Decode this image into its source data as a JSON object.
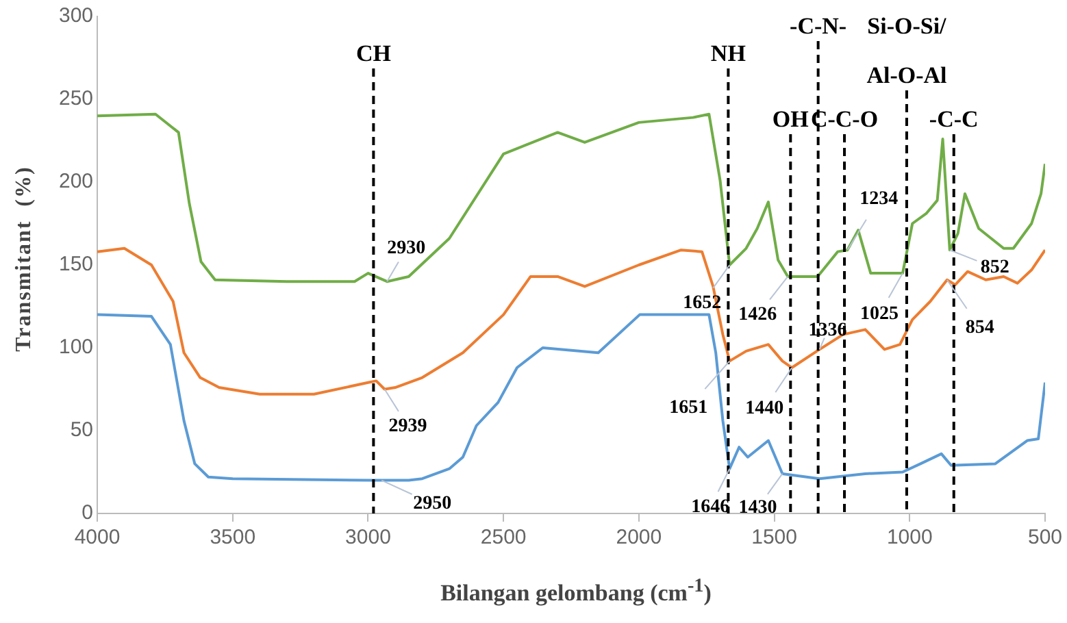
{
  "chart_data": {
    "type": "line",
    "xlabel": "Bilangan gelombang (cm$^{-1}$)",
    "ylabel": "Transmitant  (%)",
    "xlim": [
      4000,
      500
    ],
    "xticks": [
      4000,
      3500,
      3000,
      2500,
      2000,
      1500,
      1000,
      500
    ],
    "ylim": [
      0,
      300
    ],
    "yticks": [
      0,
      50,
      100,
      150,
      200,
      250,
      300
    ],
    "grid": false,
    "legend": false,
    "marker": "none",
    "series": [
      {
        "color": "#70ad47",
        "x": [
          4000,
          3785,
          3700,
          3660,
          3617,
          3565,
          3300,
          3050,
          3000,
          2930,
          2850,
          2700,
          2500,
          2300,
          2200,
          2000,
          1800,
          1741,
          1700,
          1665,
          1604,
          1563,
          1522,
          1486,
          1450,
          1340,
          1266,
          1230,
          1190,
          1144,
          1026,
          990,
          939,
          898,
          878,
          852,
          822,
          796,
          745,
          653,
          617,
          550,
          515,
          500
        ],
        "values": [
          240,
          241,
          230,
          187,
          152,
          141,
          140,
          140,
          145,
          140,
          143,
          166,
          217,
          230,
          224,
          236,
          239,
          241,
          201,
          150,
          160,
          172,
          188,
          153,
          143,
          143,
          158,
          159,
          171,
          145,
          145,
          175,
          181,
          189,
          226,
          159,
          169,
          193,
          172,
          160,
          160,
          175,
          193,
          211
        ]
      },
      {
        "color": "#ed7d31",
        "x": [
          4000,
          3900,
          3800,
          3720,
          3680,
          3620,
          3550,
          3400,
          3200,
          3000,
          2970,
          2939,
          2900,
          2800,
          2650,
          2500,
          2400,
          2300,
          2200,
          2000,
          1844,
          1767,
          1726,
          1690,
          1665,
          1604,
          1522,
          1470,
          1435,
          1333,
          1246,
          1164,
          1093,
          1036,
          990,
          924,
          862,
          832,
          786,
          719,
          653,
          602,
          550,
          500
        ],
        "values": [
          158,
          160,
          150,
          128,
          97,
          82,
          76,
          72,
          72,
          79,
          80,
          75,
          76,
          82,
          97,
          120,
          143,
          143,
          137,
          150,
          159,
          158,
          137,
          108,
          92,
          98,
          102,
          92,
          88,
          99,
          108,
          111,
          99,
          102,
          117,
          128,
          141,
          138,
          146,
          141,
          143,
          139,
          147,
          159
        ]
      },
      {
        "color": "#5b9bd5",
        "x": [
          4000,
          3800,
          3730,
          3680,
          3640,
          3590,
          3500,
          3000,
          2850,
          2800,
          2700,
          2650,
          2600,
          2520,
          2450,
          2355,
          2150,
          1997,
          1741,
          1716,
          1690,
          1665,
          1630,
          1598,
          1522,
          1470,
          1333,
          1164,
          1026,
          960,
          883,
          847,
          684,
          566,
          525,
          500
        ],
        "values": [
          120,
          119,
          102,
          56,
          30,
          22,
          21,
          20,
          20,
          21,
          27,
          34,
          53,
          67,
          88,
          100,
          97,
          120,
          120,
          97,
          56,
          27,
          40,
          34,
          44,
          24,
          21,
          24,
          25,
          30,
          36,
          29,
          30,
          44,
          45,
          79
        ]
      }
    ],
    "ref_lines": [
      {
        "axis": "x",
        "value": 2980,
        "label": "CH",
        "line_style": "dashed",
        "color": "#000000"
      },
      {
        "axis": "x",
        "value": 1670,
        "label": "NH",
        "line_style": "dashed",
        "color": "#000000"
      },
      {
        "axis": "x",
        "value": 1440,
        "label": "OH",
        "line_style": "dashed",
        "color": "#000000"
      },
      {
        "axis": "x",
        "value": 1338,
        "label": "-C-N-",
        "line_style": "dashed",
        "color": "#000000"
      },
      {
        "axis": "x",
        "value": 1241,
        "label": "C-C-O",
        "line_style": "dashed",
        "color": "#000000"
      },
      {
        "axis": "x",
        "value": 1011,
        "label": "Si-O-Si/\nAl-O-Al",
        "line_style": "dashed",
        "color": "#000000"
      },
      {
        "axis": "x",
        "value": 837,
        "label": "-C-C",
        "line_style": "dashed",
        "color": "#000000"
      }
    ],
    "annotations": [
      {
        "text": "2930",
        "x": 2930,
        "y": 140
      },
      {
        "text": "2939",
        "x": 2939,
        "y": 75
      },
      {
        "text": "2950",
        "x": 2950,
        "y": 20
      },
      {
        "text": "1652",
        "x": 1665,
        "y": 150
      },
      {
        "text": "1651",
        "x": 1665,
        "y": 92
      },
      {
        "text": "1646",
        "x": 1665,
        "y": 27
      },
      {
        "text": "1426",
        "x": 1450,
        "y": 143
      },
      {
        "text": "1440",
        "x": 1435,
        "y": 88
      },
      {
        "text": "1430",
        "x": 1470,
        "y": 24
      },
      {
        "text": "1336",
        "x": 1333,
        "y": 99
      },
      {
        "text": "1234",
        "x": 1230,
        "y": 159
      },
      {
        "text": "1025",
        "x": 1026,
        "y": 145
      },
      {
        "text": "852",
        "x": 852,
        "y": 159
      },
      {
        "text": "854",
        "x": 862,
        "y": 141
      }
    ]
  }
}
